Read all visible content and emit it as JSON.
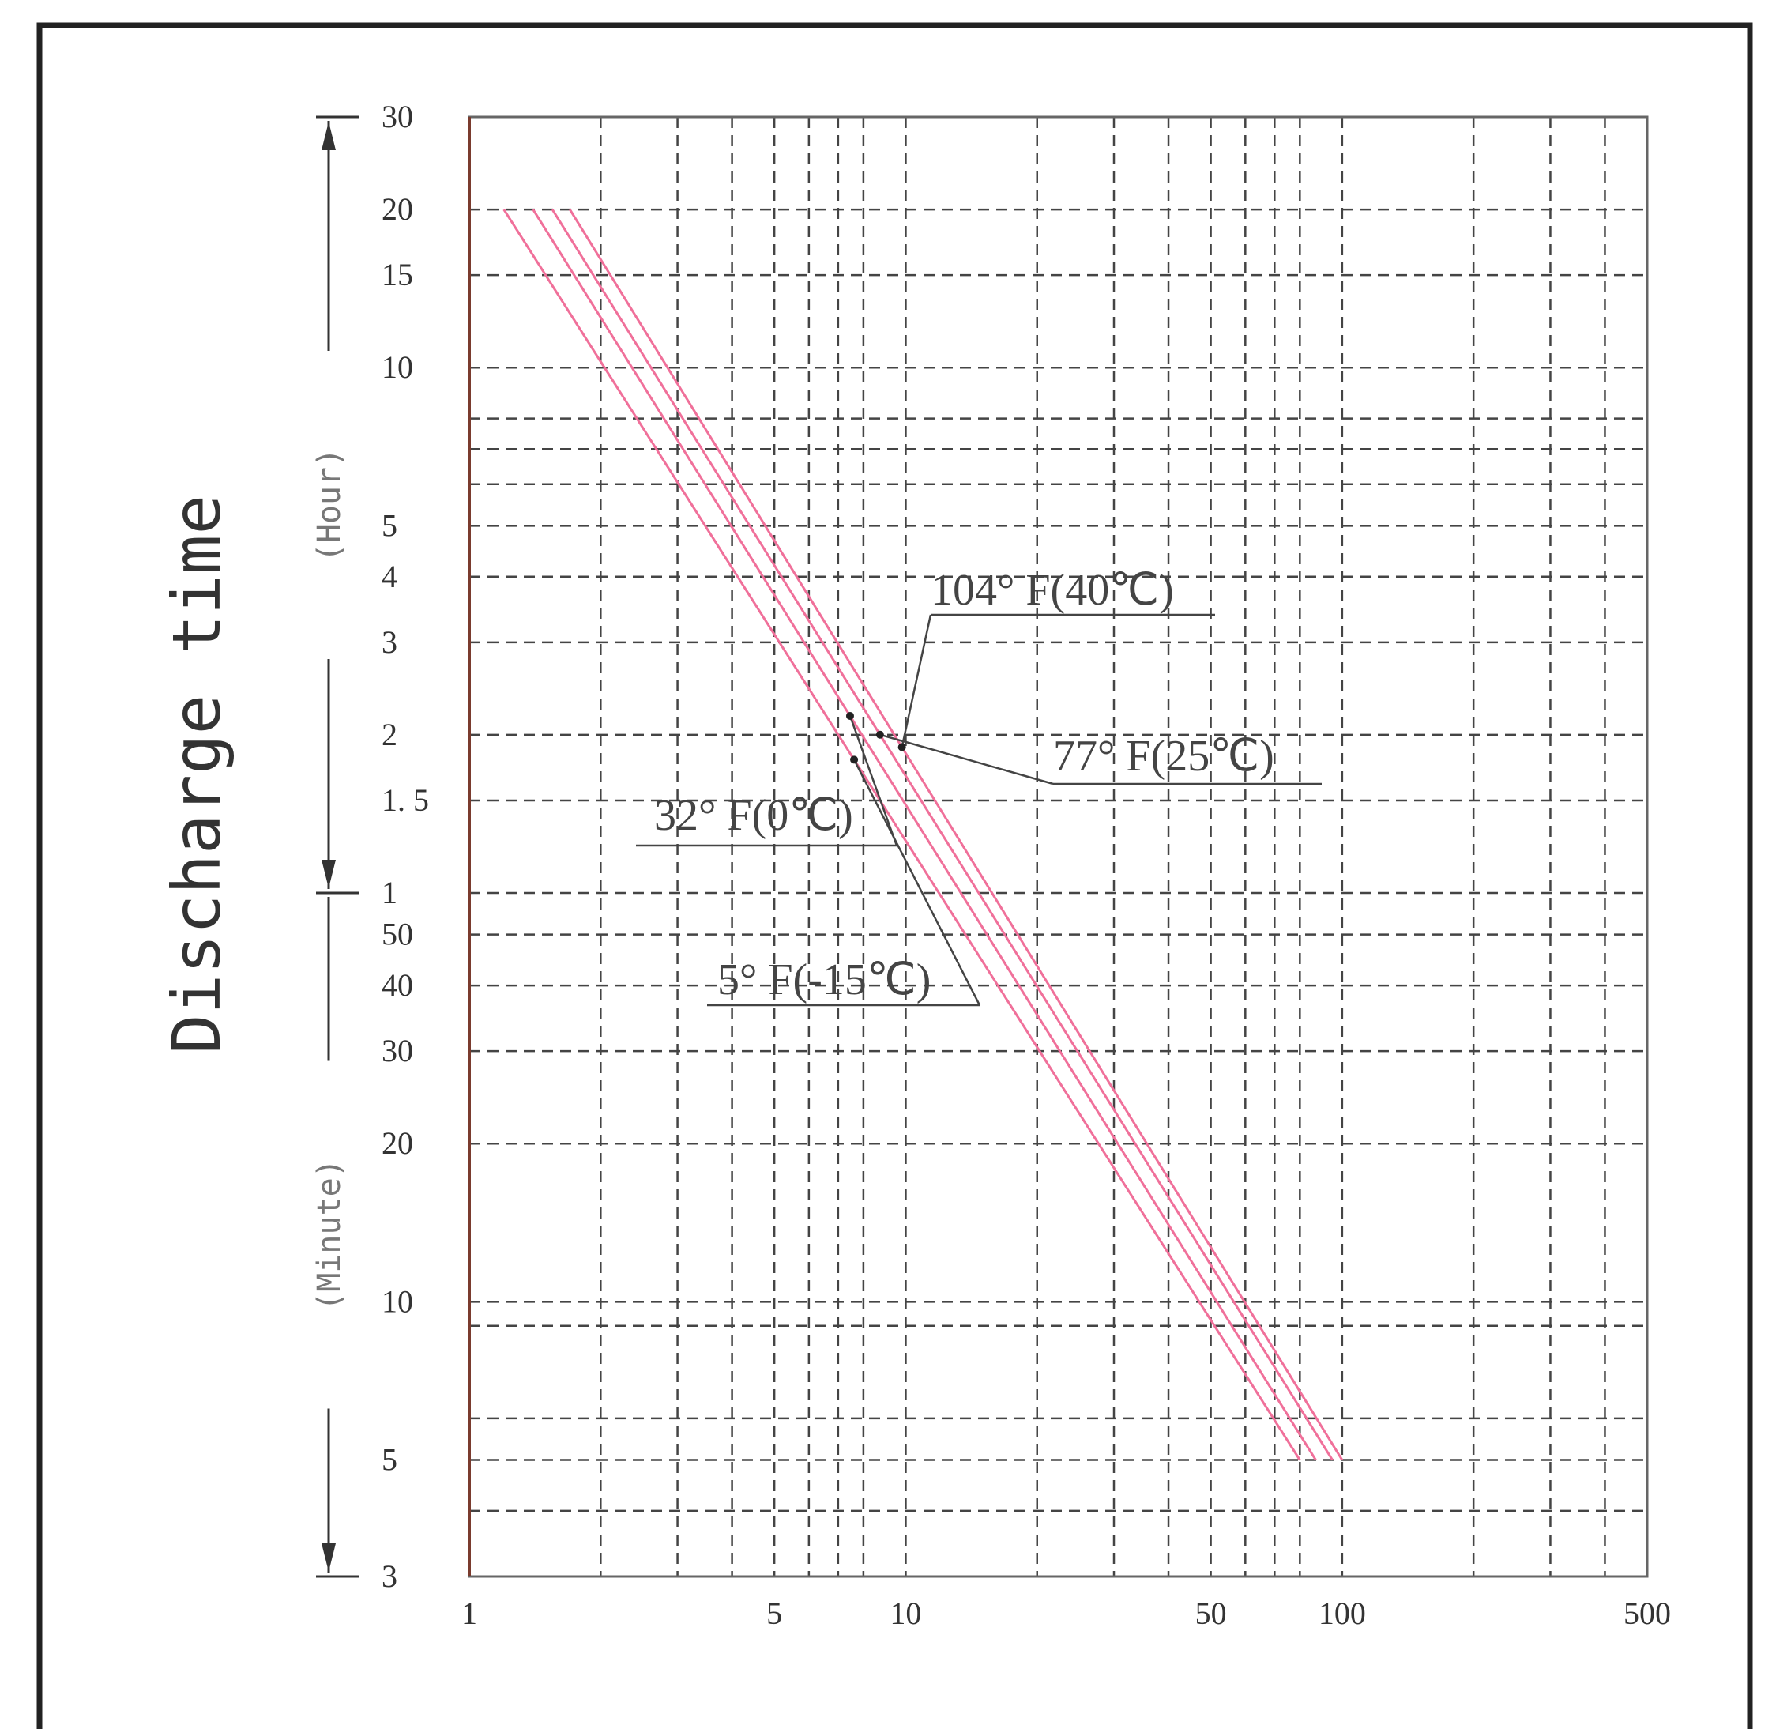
{
  "chart_data": {
    "type": "line",
    "title": "",
    "xlabel": "",
    "ylabel": "Discharge time",
    "x_scale": "log",
    "y_scale": "log",
    "xlim": [
      1,
      500
    ],
    "ylim_minutes": [
      3,
      1800
    ],
    "grid": true,
    "x_tick_labels": [
      {
        "value": 1,
        "label": "1"
      },
      {
        "value": 5,
        "label": "5"
      },
      {
        "value": 10,
        "label": "10"
      },
      {
        "value": 50,
        "label": "50"
      },
      {
        "value": 100,
        "label": "100"
      },
      {
        "value": 500,
        "label": "500"
      }
    ],
    "x_minor_gridlines": [
      2,
      3,
      4,
      6,
      7,
      8,
      20,
      30,
      40,
      60,
      70,
      80,
      200,
      300,
      400
    ],
    "y_unit_labels": {
      "hour": "(Hour)",
      "minute": "(Minute)"
    },
    "y_tick_labels": [
      {
        "minutes": 1800,
        "label": "30"
      },
      {
        "minutes": 1200,
        "label": "20"
      },
      {
        "minutes": 900,
        "label": "15"
      },
      {
        "minutes": 600,
        "label": "10"
      },
      {
        "minutes": 300,
        "label": "5"
      },
      {
        "minutes": 240,
        "label": "4"
      },
      {
        "minutes": 180,
        "label": "3"
      },
      {
        "minutes": 120,
        "label": "2"
      },
      {
        "minutes": 90,
        "label": "1. 5"
      },
      {
        "minutes": 60,
        "label": "1"
      },
      {
        "minutes": 50,
        "label": "50"
      },
      {
        "minutes": 40,
        "label": "40"
      },
      {
        "minutes": 30,
        "label": "30"
      },
      {
        "minutes": 20,
        "label": "20"
      },
      {
        "minutes": 10,
        "label": "10"
      },
      {
        "minutes": 5,
        "label": "5"
      },
      {
        "minutes": 3,
        "label": "3"
      }
    ],
    "y_extra_gridlines_minutes": [
      480,
      420,
      360,
      9,
      6,
      4
    ],
    "series": [
      {
        "name": "104° F(40℃)",
        "x": [
          1.7,
          100
        ],
        "y_minutes": [
          1200,
          5
        ]
      },
      {
        "name": "77° F(25℃)",
        "x": [
          1.55,
          95
        ],
        "y_minutes": [
          1200,
          5
        ]
      },
      {
        "name": "32° F(0℃)",
        "x": [
          1.4,
          87
        ],
        "y_minutes": [
          1200,
          5
        ]
      },
      {
        "name": "5° F(-15℃)",
        "x": [
          1.2,
          80
        ],
        "y_minutes": [
          1200,
          5
        ]
      }
    ],
    "annotations": [
      {
        "text": "104°  F(40℃)",
        "series": "104° F(40℃)"
      },
      {
        "text": "77°  F(25℃)",
        "series": "77° F(25℃)"
      },
      {
        "text": "32°  F(0℃)",
        "series": "32° F(0℃)"
      },
      {
        "text": "5°  F(-15℃)",
        "series": "5° F(-15℃)"
      }
    ],
    "colors": {
      "series": "#f0709a",
      "grid": "#444444",
      "frame": "#222222"
    }
  }
}
